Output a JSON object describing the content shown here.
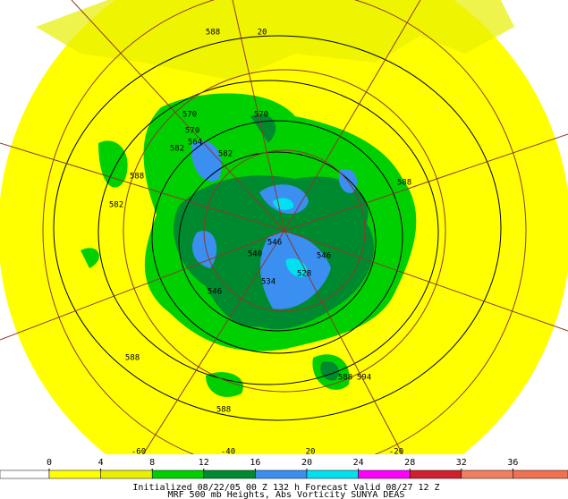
{
  "map": {
    "contour_labels": [
      "588",
      "570",
      "570",
      "570",
      "582",
      "564",
      "582",
      "588",
      "582",
      "588",
      "546",
      "540",
      "528",
      "546",
      "534",
      "546",
      "588",
      "588",
      "594",
      "588"
    ],
    "longitude_labels": [
      "20",
      "-60",
      "-40",
      "20",
      "-20"
    ],
    "colorbar": {
      "ticks": [
        0,
        4,
        8,
        12,
        16,
        20,
        24,
        28,
        32,
        36
      ],
      "colors": [
        "#ffffff",
        "#ffff00",
        "#e8f000",
        "#00d000",
        "#008a30",
        "#3a8ff0",
        "#00e0f0",
        "#ff00ff",
        "#d02030",
        "#f08060",
        "#f07050"
      ]
    },
    "footer": {
      "line1": "Initialized 08/22/05 00 Z  132 h Forecast Valid 08/27 12 Z",
      "line2": "MRF 500 mb Heights, Abs Vorticity      SUNYA DEAS"
    }
  }
}
